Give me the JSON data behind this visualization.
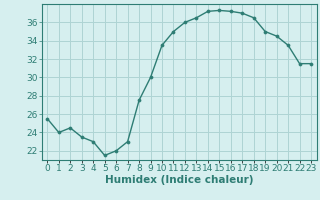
{
  "x": [
    0,
    1,
    2,
    3,
    4,
    5,
    6,
    7,
    8,
    9,
    10,
    11,
    12,
    13,
    14,
    15,
    16,
    17,
    18,
    19,
    20,
    21,
    22,
    23
  ],
  "y": [
    25.5,
    24.0,
    24.5,
    23.5,
    23.0,
    21.5,
    22.0,
    23.0,
    27.5,
    30.0,
    33.5,
    35.0,
    36.0,
    36.5,
    37.2,
    37.3,
    37.2,
    37.0,
    36.5,
    35.0,
    34.5,
    33.5,
    31.5,
    31.5
  ],
  "line_color": "#2e7d74",
  "marker": "o",
  "marker_size": 2.2,
  "line_width": 1.0,
  "bg_color": "#d6efef",
  "grid_color": "#aed4d4",
  "xlabel": "Humidex (Indice chaleur)",
  "xlabel_fontsize": 7.5,
  "ylabel_ticks": [
    22,
    24,
    26,
    28,
    30,
    32,
    34,
    36
  ],
  "ylim": [
    21.0,
    38.0
  ],
  "xlim": [
    -0.5,
    23.5
  ],
  "xtick_labels": [
    "0",
    "1",
    "2",
    "3",
    "4",
    "5",
    "6",
    "7",
    "8",
    "9",
    "10",
    "11",
    "12",
    "13",
    "14",
    "15",
    "16",
    "17",
    "18",
    "19",
    "20",
    "21",
    "22",
    "23"
  ],
  "tick_fontsize": 6.5,
  "tick_color": "#2e7d74",
  "spine_color": "#2e7d74"
}
